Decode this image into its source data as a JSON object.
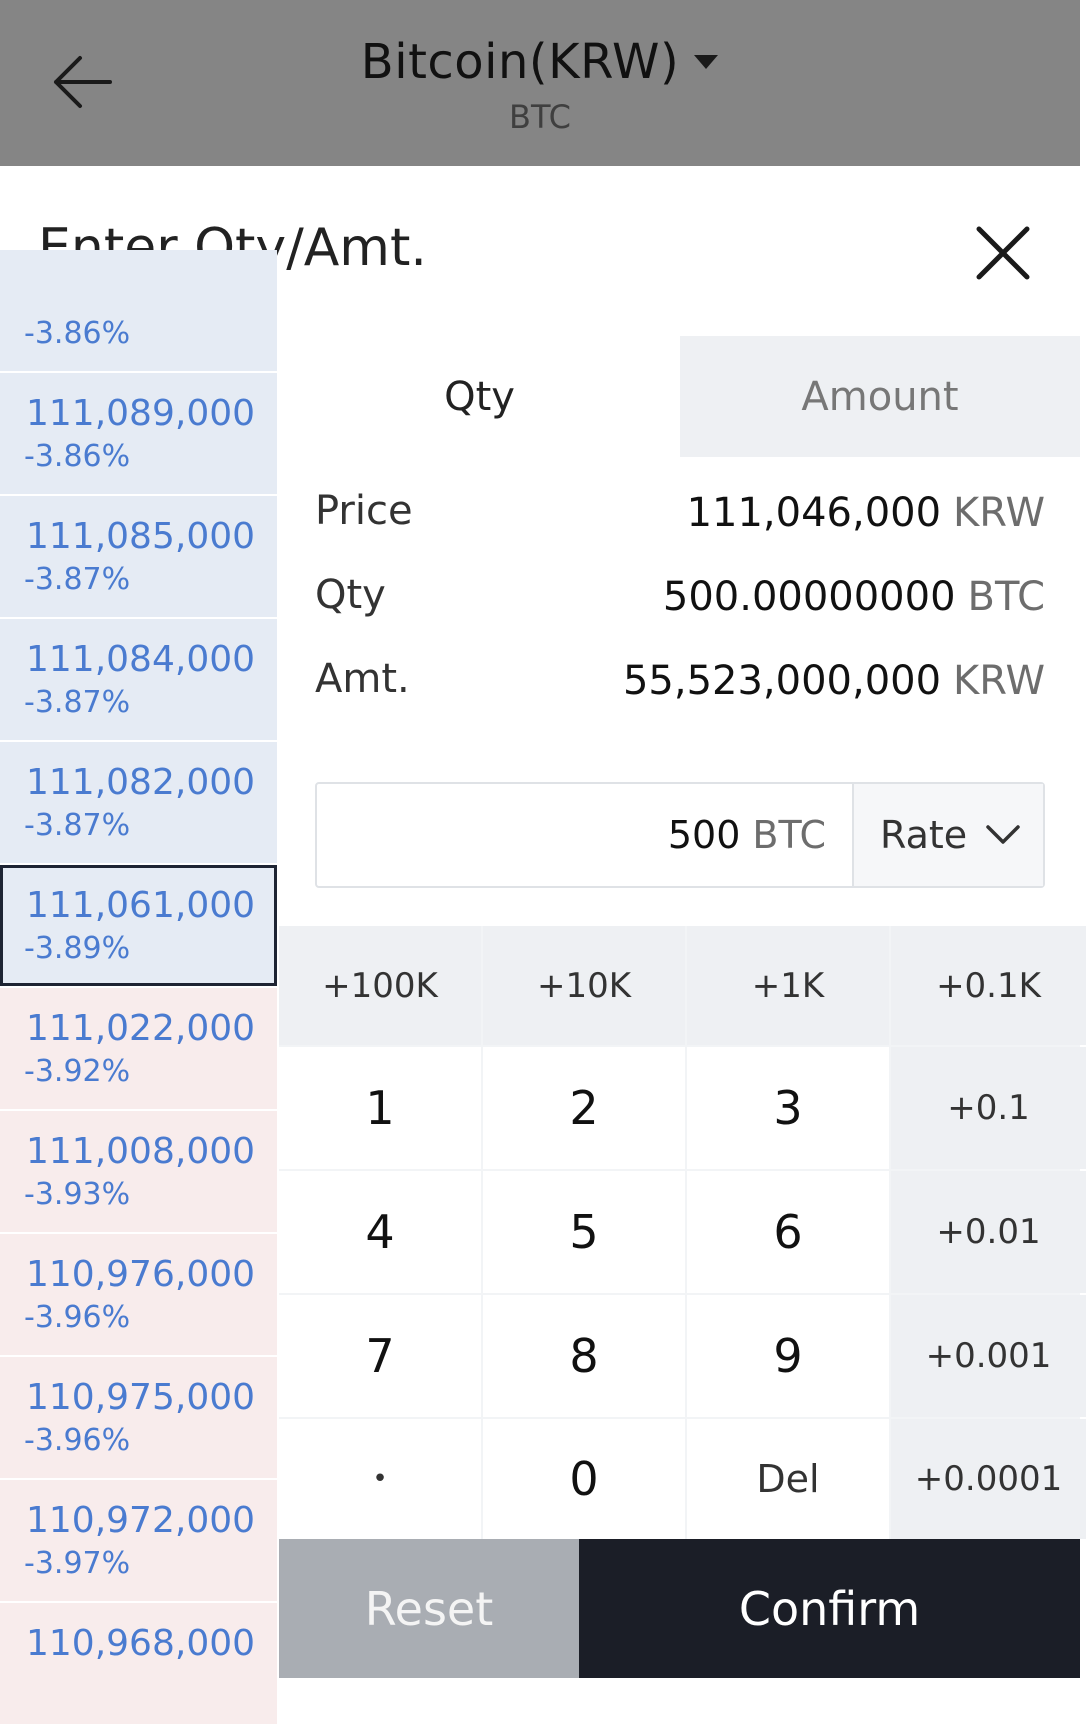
{
  "header": {
    "title": "Bitcoin(KRW)",
    "subtitle": "BTC",
    "back_icon": "arrow-left-icon",
    "dropdown_icon": "caret-down-icon"
  },
  "sheet": {
    "title": "Enter Qty/Amt.",
    "close_icon": "close-icon"
  },
  "price_list": [
    {
      "price": "",
      "rate": "-3.86%",
      "side": "ask",
      "selected": false
    },
    {
      "price": "111,089,000",
      "rate": "-3.86%",
      "side": "ask",
      "selected": false
    },
    {
      "price": "111,085,000",
      "rate": "-3.87%",
      "side": "ask",
      "selected": false
    },
    {
      "price": "111,084,000",
      "rate": "-3.87%",
      "side": "ask",
      "selected": false
    },
    {
      "price": "111,082,000",
      "rate": "-3.87%",
      "side": "ask",
      "selected": false
    },
    {
      "price": "111,061,000",
      "rate": "-3.89%",
      "side": "ask",
      "selected": true
    },
    {
      "price": "111,022,000",
      "rate": "-3.92%",
      "side": "bid",
      "selected": false
    },
    {
      "price": "111,008,000",
      "rate": "-3.93%",
      "side": "bid",
      "selected": false
    },
    {
      "price": "110,976,000",
      "rate": "-3.96%",
      "side": "bid",
      "selected": false
    },
    {
      "price": "110,975,000",
      "rate": "-3.96%",
      "side": "bid",
      "selected": false
    },
    {
      "price": "110,972,000",
      "rate": "-3.97%",
      "side": "bid",
      "selected": false
    },
    {
      "price": "110,968,000",
      "rate": "",
      "side": "bid",
      "selected": false
    }
  ],
  "tabs": {
    "qty": "Qty",
    "amount": "Amount",
    "active": "qty"
  },
  "info": {
    "price_label": "Price",
    "price_value": "111,046,000",
    "price_unit": "KRW",
    "qty_label": "Qty",
    "qty_value": "500.00000000",
    "qty_unit": "BTC",
    "amt_label": "Amt.",
    "amt_value": "55,523,000,000",
    "amt_unit": "KRW"
  },
  "input": {
    "value": "500",
    "unit": "BTC",
    "rate_label": "Rate",
    "rate_icon": "chevron-down-icon"
  },
  "keypad": {
    "quick": [
      "+100K",
      "+10K",
      "+1K",
      "+0.1K"
    ],
    "rows": [
      [
        "1",
        "2",
        "3",
        "+0.1"
      ],
      [
        "4",
        "5",
        "6",
        "+0.01"
      ],
      [
        "7",
        "8",
        "9",
        "+0.001"
      ],
      [
        "•",
        "0",
        "Del",
        "+0.0001"
      ]
    ]
  },
  "actions": {
    "reset": "Reset",
    "confirm": "Confirm"
  },
  "colors": {
    "header_bg": "#858585",
    "ask_bg": "#e5ebf4",
    "bid_bg": "#f8ecec",
    "price_text": "#4a7bd0",
    "confirm_bg": "#1b1e27",
    "reset_bg": "#a9adb3"
  }
}
